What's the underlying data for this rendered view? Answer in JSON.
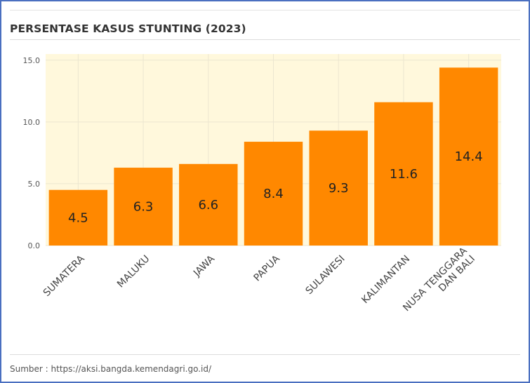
{
  "chart_data": {
    "type": "bar",
    "title": "PERSENTASE KASUS STUNTING (2023)",
    "categories": [
      "SUMATERA",
      "MALUKU",
      "JAWA",
      "PAPUA",
      "SULAWESI",
      "KALIMANTAN",
      "NUSA TENGGARA DAN BALI"
    ],
    "category_lines": [
      [
        "SUMATERA"
      ],
      [
        "MALUKU"
      ],
      [
        "JAWA"
      ],
      [
        "PAPUA"
      ],
      [
        "SULAWESI"
      ],
      [
        "KALIMANTAN"
      ],
      [
        "NUSA TENGGARA",
        "DAN BALI"
      ]
    ],
    "values": [
      4.5,
      6.3,
      6.6,
      8.4,
      9.3,
      11.6,
      14.4
    ],
    "value_labels": [
      "4.5",
      "6.3",
      "6.6",
      "8.4",
      "9.3",
      "11.6",
      "14.4"
    ],
    "yticks": [
      0,
      5,
      10,
      15
    ],
    "ytick_labels": [
      "0.0",
      "5.0",
      "10.0",
      "15.0"
    ],
    "ylim": [
      0,
      15.5
    ],
    "grid": true,
    "bar_color": "#ff8800",
    "plot_background": "#fff8dc"
  },
  "source": "Sumber : https://aksi.bangda.kemendagri.go.id/"
}
